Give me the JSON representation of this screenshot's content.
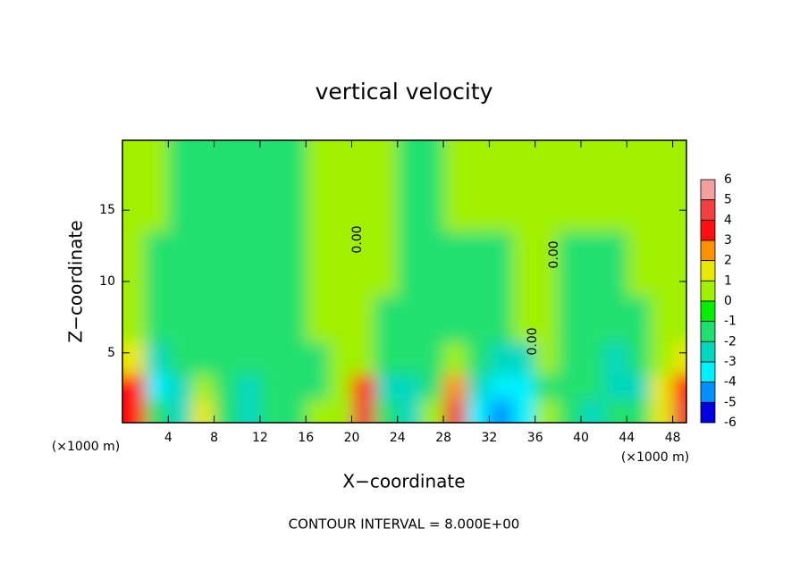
{
  "chart_data": {
    "type": "heatmap",
    "title": "vertical velocity",
    "x_label": "X−coordinate",
    "y_label": "Z−coordinate",
    "x_unit": "(×1000 m)",
    "x_unit_right": "(×1000 m)",
    "footer": "CONTOUR INTERVAL = 8.000E+00",
    "contour_labels": [
      "0.00",
      "0.00",
      "0.00"
    ],
    "xlim": [
      0,
      49.2
    ],
    "ylim": [
      0.1,
      19.9
    ],
    "xticks": [
      4,
      8,
      12,
      16,
      20,
      24,
      28,
      32,
      36,
      40,
      44,
      48
    ],
    "yticks": [
      5,
      10,
      15
    ],
    "x": [
      1,
      3,
      5,
      7,
      9,
      11,
      13,
      15,
      17,
      19,
      21,
      23,
      25,
      27,
      29,
      31,
      33,
      35,
      37,
      39,
      41,
      43,
      45,
      47,
      49
    ],
    "z": [
      1,
      2.5,
      4.5,
      7,
      11,
      16
    ],
    "values": [
      [
        3.5,
        -0.5,
        -1,
        1.5,
        -0.5,
        -1,
        0,
        -0.5,
        0.5,
        1,
        4.5,
        -0.5,
        -1.5,
        0.5,
        4.5,
        -2,
        -3,
        -2,
        0.5,
        0,
        -1,
        0,
        -0.5,
        2,
        4.5
      ],
      [
        3.5,
        -2,
        -1,
        0.5,
        -0.5,
        -1,
        -0.5,
        0,
        0,
        1,
        4,
        -1,
        -1,
        0,
        2.5,
        -1,
        -2,
        -2.5,
        0,
        -0.5,
        -0.5,
        -1.5,
        -1,
        1.5,
        4
      ],
      [
        2,
        -1,
        -0.5,
        -0.5,
        -0.3,
        -0.5,
        -0.3,
        -0.3,
        0,
        0.5,
        0.5,
        -0.5,
        0,
        -0.3,
        0.3,
        -0.5,
        -1,
        -1,
        0.5,
        0,
        0,
        -1,
        -0.5,
        0.5,
        2
      ],
      [
        0.5,
        -0.3,
        -0.3,
        -0.3,
        -0.3,
        -0.3,
        -0.3,
        -0.3,
        0.3,
        0.3,
        0.3,
        0,
        -0.2,
        -0.3,
        -0.5,
        -0.3,
        -0.3,
        0.2,
        0.2,
        -0.2,
        -0.2,
        -0.3,
        -0.3,
        0.2,
        0.5
      ],
      [
        0.3,
        0,
        -0.3,
        -0.3,
        -0.3,
        -0.3,
        -0.3,
        -0.3,
        0.2,
        0.3,
        0.3,
        0.2,
        -0.2,
        -0.3,
        -0.3,
        -0.2,
        0,
        0.2,
        0.3,
        -0.2,
        -0.2,
        0,
        0.2,
        0.3,
        0.3
      ],
      [
        0.3,
        0.2,
        0,
        -0.2,
        -0.2,
        -0.2,
        -0.2,
        0,
        0.2,
        0.3,
        0.3,
        0.3,
        0,
        -0.1,
        0.1,
        0.3,
        0.3,
        0.3,
        0.3,
        0.3,
        0.3,
        0.3,
        0.3,
        0.3,
        0.3
      ]
    ],
    "colorbar": {
      "levels": [
        6,
        5,
        4,
        3,
        2,
        1,
        0,
        -1,
        -2,
        -3,
        -4,
        -5,
        -6
      ],
      "colors": [
        "#f4a0a0",
        "#f04040",
        "#ff1010",
        "#ff9000",
        "#e8e800",
        "#a0f000",
        "#00f000",
        "#20e070",
        "#00d8c0",
        "#00f0ff",
        "#0090ff",
        "#0000e0",
        "#8000c0"
      ]
    }
  }
}
